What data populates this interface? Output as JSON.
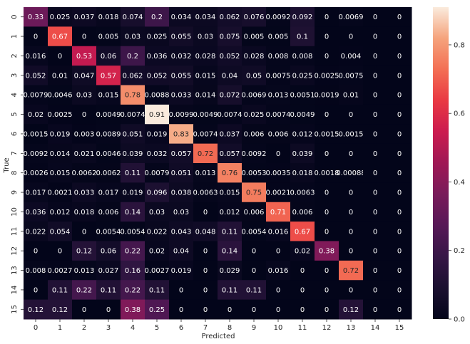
{
  "chart_data": {
    "type": "heatmap",
    "xlabel": "Predicted",
    "ylabel": "True",
    "x_categories": [
      "0",
      "1",
      "2",
      "3",
      "4",
      "5",
      "6",
      "7",
      "8",
      "9",
      "10",
      "11",
      "12",
      "13",
      "14",
      "15"
    ],
    "y_categories": [
      "0",
      "1",
      "2",
      "3",
      "4",
      "5",
      "6",
      "7",
      "8",
      "9",
      "10",
      "11",
      "12",
      "13",
      "14",
      "15"
    ],
    "values": [
      [
        0.33,
        0.025,
        0.037,
        0.018,
        0.074,
        0.2,
        0.034,
        0.034,
        0.062,
        0.076,
        0.0092,
        0.092,
        0,
        0.0069,
        0,
        0
      ],
      [
        0,
        0.67,
        0,
        0.005,
        0.03,
        0.025,
        0.055,
        0.03,
        0.075,
        0.005,
        0.005,
        0.1,
        0,
        0,
        0,
        0
      ],
      [
        0.016,
        0,
        0.53,
        0.06,
        0.2,
        0.036,
        0.032,
        0.028,
        0.052,
        0.028,
        0.008,
        0.008,
        0,
        0.004,
        0,
        0
      ],
      [
        0.052,
        0.01,
        0.047,
        0.57,
        0.062,
        0.052,
        0.055,
        0.015,
        0.04,
        0.05,
        0.0075,
        0.025,
        0.0025,
        0.0075,
        0,
        0
      ],
      [
        0.0079,
        0.0046,
        0.03,
        0.015,
        0.78,
        0.0088,
        0.033,
        0.014,
        0.072,
        0.0069,
        0.013,
        0.0051,
        0.0019,
        0.01,
        0,
        0
      ],
      [
        0.02,
        0.0025,
        0,
        0.0049,
        0.0074,
        0.91,
        0.0099,
        0.0049,
        0.0074,
        0.025,
        0.0074,
        0.0049,
        0,
        0,
        0,
        0
      ],
      [
        0.0015,
        0.019,
        0.003,
        0.0089,
        0.051,
        0.019,
        0.83,
        0.0074,
        0.037,
        0.006,
        0.006,
        0.012,
        0.0015,
        0.0015,
        0,
        0
      ],
      [
        0.0092,
        0.014,
        0.021,
        0.0046,
        0.039,
        0.032,
        0.057,
        0.72,
        0.057,
        0.0092,
        0,
        0.039,
        0,
        0,
        0,
        0
      ],
      [
        0.0026,
        0.015,
        0.0062,
        0.0062,
        0.11,
        0.0079,
        0.051,
        0.013,
        0.76,
        0.0053,
        0.0035,
        0.018,
        0.0018,
        0.00088,
        0,
        0
      ],
      [
        0.017,
        0.0021,
        0.033,
        0.017,
        0.019,
        0.096,
        0.038,
        0.0063,
        0.015,
        0.75,
        0.0021,
        0.0063,
        0,
        0,
        0,
        0
      ],
      [
        0.036,
        0.012,
        0.018,
        0.006,
        0.14,
        0.03,
        0.03,
        0,
        0.012,
        0.006,
        0.71,
        0.006,
        0,
        0,
        0,
        0
      ],
      [
        0.022,
        0.054,
        0,
        0.0054,
        0.0054,
        0.022,
        0.043,
        0.048,
        0.11,
        0.0054,
        0.016,
        0.67,
        0,
        0,
        0,
        0
      ],
      [
        0,
        0,
        0.12,
        0.06,
        0.22,
        0.02,
        0.04,
        0,
        0.14,
        0,
        0,
        0.02,
        0.38,
        0,
        0,
        0
      ],
      [
        0.008,
        0.0027,
        0.013,
        0.027,
        0.16,
        0.0027,
        0.019,
        0,
        0.029,
        0,
        0.016,
        0,
        0,
        0.72,
        0,
        0
      ],
      [
        0,
        0.11,
        0.22,
        0.11,
        0.22,
        0.11,
        0,
        0,
        0.11,
        0.11,
        0,
        0,
        0,
        0,
        0,
        0
      ],
      [
        0.12,
        0.12,
        0,
        0,
        0.38,
        0.25,
        0,
        0,
        0,
        0,
        0,
        0,
        0,
        0.12,
        0,
        0
      ]
    ],
    "colorbar": {
      "vmin": 0,
      "vmax": 0.91,
      "ticks": [
        0.0,
        0.2,
        0.4,
        0.6,
        0.8
      ],
      "tick_labels": [
        "0.0",
        "0.2",
        "0.4",
        "0.6",
        "0.8"
      ],
      "colormap": "rocket"
    },
    "annotations": true,
    "grid": false
  }
}
